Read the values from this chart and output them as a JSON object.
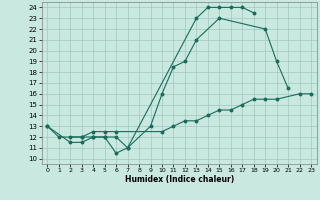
{
  "xlabel": "Humidex (Indice chaleur)",
  "xlim": [
    -0.5,
    23.5
  ],
  "ylim": [
    9.5,
    24.5
  ],
  "yticks": [
    10,
    11,
    12,
    13,
    14,
    15,
    16,
    17,
    18,
    19,
    20,
    21,
    22,
    23,
    24
  ],
  "xticks": [
    0,
    1,
    2,
    3,
    4,
    5,
    6,
    7,
    8,
    9,
    10,
    11,
    12,
    13,
    14,
    15,
    16,
    17,
    18,
    19,
    20,
    21,
    22,
    23
  ],
  "bg_color": "#c8e8e0",
  "grid_color": "#a0c8c0",
  "line_color": "#1a6b5a",
  "curves": [
    {
      "x": [
        0,
        1,
        3,
        4,
        5,
        6,
        7,
        13,
        14,
        15,
        16,
        17,
        18
      ],
      "y": [
        13,
        12,
        12,
        12,
        12,
        10.5,
        11,
        23,
        24,
        24,
        24,
        24,
        23.5
      ]
    },
    {
      "x": [
        0,
        2,
        3,
        4,
        5,
        6,
        7,
        9,
        10,
        11,
        12,
        13,
        15,
        19,
        20,
        21
      ],
      "y": [
        13,
        11.5,
        11.5,
        12,
        12,
        12,
        11,
        13,
        16,
        18.5,
        19,
        21,
        23,
        22,
        19,
        16.5
      ]
    },
    {
      "x": [
        2,
        3,
        4,
        5,
        6,
        10,
        11,
        12,
        13,
        14,
        15,
        16,
        17,
        18,
        19,
        20,
        22,
        23
      ],
      "y": [
        12,
        12,
        12.5,
        12.5,
        12.5,
        12.5,
        13,
        13.5,
        13.5,
        14,
        14.5,
        14.5,
        15,
        15.5,
        15.5,
        15.5,
        16,
        16
      ]
    }
  ]
}
